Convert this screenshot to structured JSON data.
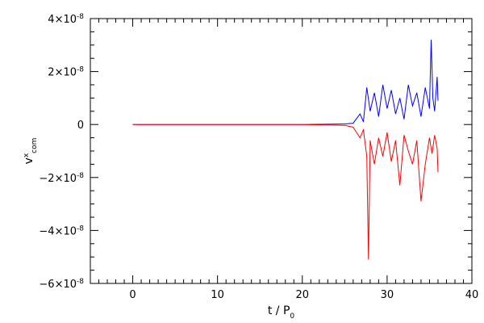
{
  "chart_data": {
    "type": "line",
    "title": "",
    "xlabel": "t / P",
    "xlabel_sub": "0",
    "ylabel": "v",
    "ylabel_sup": "x",
    "ylabel_sub": "com",
    "xlim": [
      -5,
      40
    ],
    "ylim": [
      -6e-08,
      4e-08
    ],
    "grid": false,
    "x_ticks": [
      {
        "value": 0,
        "label": "0"
      },
      {
        "value": 10,
        "label": "10"
      },
      {
        "value": 20,
        "label": "20"
      },
      {
        "value": 30,
        "label": "30"
      },
      {
        "value": 40,
        "label": "40"
      }
    ],
    "y_ticks": [
      {
        "value": 4e-08,
        "label": "4×10",
        "exp": "-8"
      },
      {
        "value": 2e-08,
        "label": "2×10",
        "exp": "-8"
      },
      {
        "value": 0,
        "label": "0",
        "exp": ""
      },
      {
        "value": -2e-08,
        "label": "−2×10",
        "exp": "-8"
      },
      {
        "value": -4e-08,
        "label": "−4×10",
        "exp": "-8"
      },
      {
        "value": -6e-08,
        "label": "−6×10",
        "exp": "-8"
      }
    ],
    "series": [
      {
        "color": "#ff0000",
        "x": [
          0,
          5,
          10,
          15,
          20,
          25,
          26,
          26.8,
          27.2,
          27.6,
          27.8,
          28.0,
          28.5,
          29.0,
          29.5,
          30.0,
          30.5,
          31.0,
          31.5,
          32.0,
          32.5,
          33.0,
          33.5,
          34.0,
          34.5,
          35.0,
          35.3,
          35.6,
          35.9,
          36.0
        ],
        "y": [
          0,
          0,
          0,
          0,
          0,
          -3e-10,
          -1e-09,
          -5e-09,
          -2e-09,
          -1.2e-08,
          -5.1e-08,
          -6e-09,
          -1.5e-08,
          -5e-09,
          -1.2e-08,
          -3e-09,
          -1.4e-08,
          -6e-09,
          -2.3e-08,
          -4e-09,
          -1e-08,
          -1.5e-08,
          -6e-09,
          -2.9e-08,
          -1.5e-08,
          -5e-09,
          -1.1e-08,
          -4e-09,
          -9e-09,
          -1.8e-08
        ]
      },
      {
        "color": "#0000ff",
        "x": [
          0,
          5,
          10,
          15,
          20,
          25,
          26,
          26.8,
          27.2,
          27.6,
          28.0,
          28.5,
          29.0,
          29.5,
          30.0,
          30.5,
          31.0,
          31.5,
          32.0,
          32.5,
          33.0,
          33.5,
          34.0,
          34.5,
          35.0,
          35.2,
          35.4,
          35.6,
          35.9,
          36.0
        ],
        "y": [
          0,
          0,
          0,
          0,
          0,
          2e-10,
          5e-10,
          4e-09,
          1e-09,
          1.4e-08,
          5e-09,
          1.2e-08,
          3e-09,
          1.5e-08,
          6e-09,
          1.3e-08,
          4e-09,
          1e-08,
          2e-09,
          1.5e-08,
          7e-09,
          1.2e-08,
          3e-09,
          1.4e-08,
          6e-09,
          3.2e-08,
          1e-08,
          5e-09,
          1.8e-08,
          9e-09
        ]
      }
    ]
  }
}
